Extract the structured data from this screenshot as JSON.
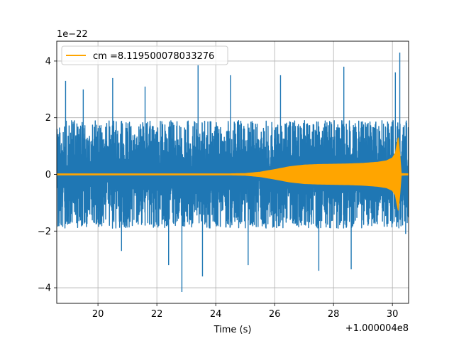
{
  "chart_data": {
    "type": "line",
    "title": "",
    "xlabel": "Time (s)",
    "ylabel": "",
    "x_offset_label": "+1.000004e8",
    "y_scale_label": "1e−22",
    "xlim": [
      18.6,
      30.55
    ],
    "ylim": [
      -4.55,
      4.7
    ],
    "x_ticks": [
      20,
      22,
      24,
      26,
      28,
      30
    ],
    "x_tick_labels": [
      "20",
      "22",
      "24",
      "26",
      "28",
      "30"
    ],
    "y_ticks": [
      -4,
      -2,
      0,
      2,
      4
    ],
    "y_tick_labels": [
      "−4",
      "−2",
      "0",
      "2",
      "4"
    ],
    "grid": true,
    "legend": {
      "placement": "upper-left",
      "entries": [
        "cm =8.119500078033276"
      ]
    },
    "series": [
      {
        "role": "noise-strain",
        "color": "#1f77b4",
        "x_range": [
          18.6,
          30.55
        ],
        "typical_band": [
          -1.9,
          1.9
        ],
        "x": [
          18.9,
          19.5,
          20.5,
          20.8,
          21.6,
          22.4,
          22.85,
          23.4,
          23.55,
          24.5,
          25.1,
          26.2,
          27.5,
          28.35,
          28.6,
          30.1,
          30.25,
          30.45
        ],
        "y": [
          3.3,
          3.0,
          3.4,
          -2.7,
          3.1,
          -3.2,
          -4.15,
          3.85,
          -3.6,
          3.5,
          -3.2,
          3.5,
          -3.4,
          3.8,
          -3.35,
          3.6,
          4.3,
          -2.1
        ]
      },
      {
        "role": "signal-template",
        "name": "cm =8.119500078033276",
        "color": "#ffa500",
        "x": [
          18.6,
          24.5,
          25.0,
          25.5,
          26.0,
          26.5,
          27.0,
          27.5,
          28.0,
          28.5,
          29.0,
          29.5,
          29.8,
          30.0,
          30.1,
          30.18,
          30.22,
          30.26,
          30.3,
          30.55
        ],
        "amplitude": [
          0.02,
          0.02,
          0.03,
          0.08,
          0.17,
          0.27,
          0.33,
          0.35,
          0.36,
          0.37,
          0.39,
          0.43,
          0.48,
          0.58,
          0.75,
          1.2,
          1.4,
          0.5,
          0.03,
          0.02
        ]
      }
    ]
  }
}
